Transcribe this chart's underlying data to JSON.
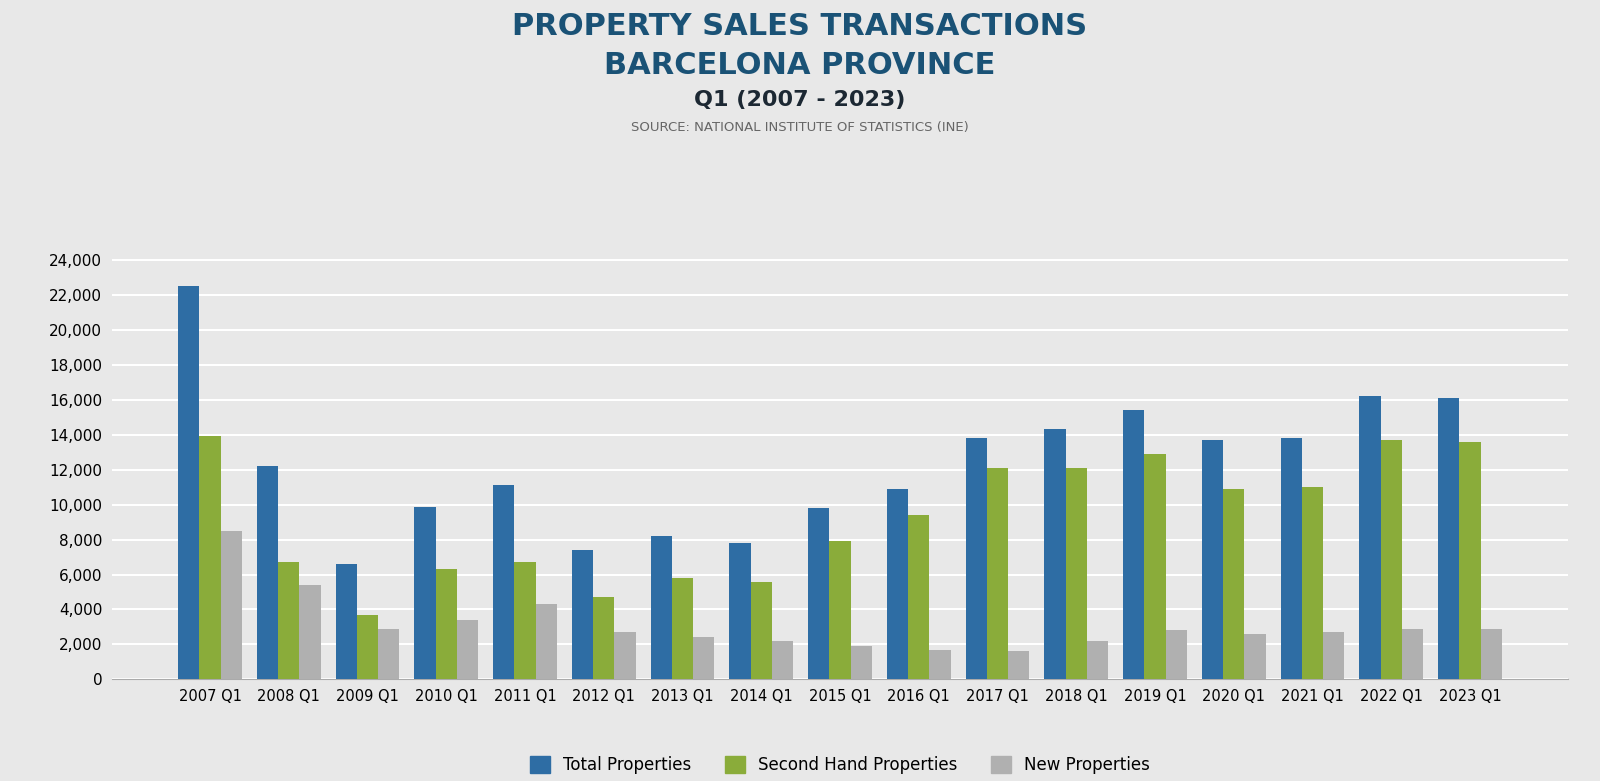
{
  "title_line1": "PROPERTY SALES TRANSACTIONS",
  "title_line2": "BARCELONA PROVINCE",
  "title_line3": "Q1 (2007 - 2023)",
  "title_line4": "SOURCE: NATIONAL INSTITUTE OF STATISTICS (INE)",
  "categories": [
    "2007 Q1",
    "2008 Q1",
    "2009 Q1",
    "2010 Q1",
    "2011 Q1",
    "2012 Q1",
    "2013 Q1",
    "2014 Q1",
    "2015 Q1",
    "2016 Q1",
    "2017 Q1",
    "2018 Q1",
    "2019 Q1",
    "2020 Q1",
    "2021 Q1",
    "2022 Q1",
    "2023 Q1"
  ],
  "total_properties": [
    22500,
    12200,
    6600,
    9850,
    11100,
    7400,
    8200,
    7800,
    9800,
    10900,
    13800,
    14300,
    15400,
    13700,
    13800,
    16200,
    16100
  ],
  "second_hand_properties": [
    13900,
    6700,
    3700,
    6300,
    6700,
    4700,
    5800,
    5600,
    7900,
    9400,
    12100,
    12100,
    12900,
    10900,
    11000,
    13700,
    13600
  ],
  "new_properties": [
    8500,
    5400,
    2900,
    3400,
    4300,
    2700,
    2400,
    2200,
    1900,
    1700,
    1600,
    2200,
    2800,
    2600,
    2700,
    2900,
    2900
  ],
  "color_total": "#2e6da4",
  "color_second_hand": "#8aac3a",
  "color_new": "#b0b0b0",
  "background_color": "#e8e8e8",
  "ylim": [
    0,
    25000
  ],
  "yticks": [
    0,
    2000,
    4000,
    6000,
    8000,
    10000,
    12000,
    14000,
    16000,
    18000,
    20000,
    22000,
    24000
  ],
  "legend_labels": [
    "Total Properties",
    "Second Hand Properties",
    "New Properties"
  ],
  "bar_width": 0.27,
  "grid_color": "#ffffff",
  "title1_color": "#1a5276",
  "title2_color": "#1a5276",
  "title3_color": "#1c2833",
  "title4_color": "#666666"
}
